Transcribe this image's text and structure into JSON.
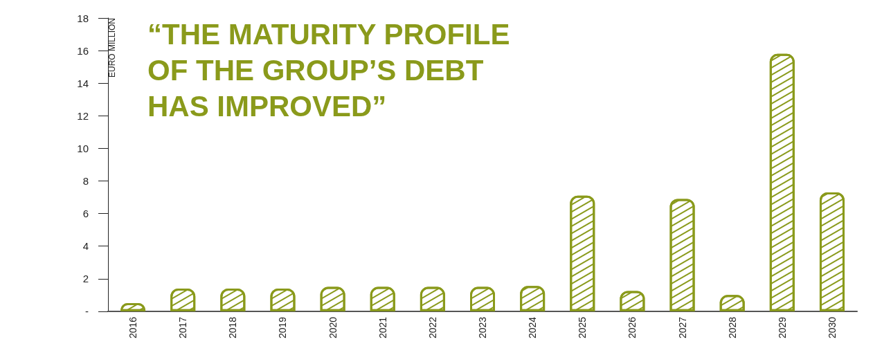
{
  "chart_data": {
    "type": "bar",
    "title": "“THE MATURITY PROFILE OF THE GROUP’S DEBT HAS IMPROVED”",
    "ylabel": "EURO MILLION",
    "categories": [
      "2016",
      "2017",
      "2018",
      "2019",
      "2020",
      "2021",
      "2022",
      "2023",
      "2024",
      "2025",
      "2026",
      "2027",
      "2028",
      "2029",
      "2030"
    ],
    "values": [
      0.5,
      1.4,
      1.4,
      1.4,
      1.5,
      1.5,
      1.5,
      1.5,
      1.55,
      7.1,
      1.25,
      6.9,
      1.0,
      15.8,
      7.3
    ],
    "color": "#8a9a1b",
    "ylim": [
      0,
      18
    ],
    "yticks": [
      {
        "value": 0,
        "label": "-"
      },
      2,
      4,
      6,
      8,
      10,
      12,
      14,
      16,
      18
    ],
    "grid": false
  }
}
